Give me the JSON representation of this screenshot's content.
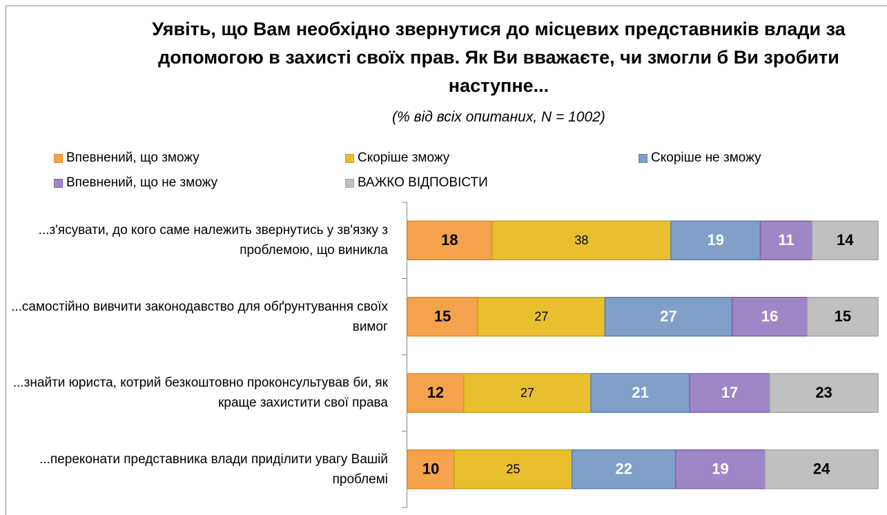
{
  "chart_data": {
    "type": "stacked_barh",
    "title": "Уявіть, що Вам необхідно звернутися до місцевих представників влади за допомогою в захисті своїх прав. Як Ви вважаєте, чи змогли б Ви зробити наступне...",
    "subtitle": "(% від всіх опитаних, N = 1002)",
    "categories": [
      "...з'ясувати, до кого саме належить звернутись у зв'язку з проблемою, що виникла",
      "...самостійно вивчити законодавство для обґрунтування своїх вимог",
      "...знайти юриста, котрий безкоштовно проконсультував би, як краще захистити свої права",
      "...переконати представника влади приділити увагу Вашій проблемі"
    ],
    "series": [
      {
        "name": "Впевнений, що зможу",
        "color": "#f4a24c",
        "border": "#e0882c",
        "label_color": "#000000",
        "label_bold": true,
        "values": [
          18,
          15,
          12,
          10
        ]
      },
      {
        "name": "Скоріше зможу",
        "color": "#e9bf30",
        "border": "#c9a017",
        "label_color": "#000000",
        "label_bold": false,
        "values": [
          38,
          27,
          27,
          25
        ]
      },
      {
        "name": "Скоріше не зможу",
        "color": "#80a0c9",
        "border": "#5a7fb0",
        "label_color": "#ffffff",
        "label_bold": true,
        "values": [
          19,
          27,
          21,
          22
        ]
      },
      {
        "name": "Впевнений, що не зможу",
        "color": "#9f87c7",
        "border": "#7d61ad",
        "label_color": "#ffffff",
        "label_bold": true,
        "values": [
          11,
          16,
          17,
          19
        ]
      },
      {
        "name": "ВАЖКО ВІДПОВІСТИ",
        "color": "#c0c0c0",
        "border": "#a6a6a6",
        "label_color": "#000000",
        "label_bold": true,
        "values": [
          14,
          15,
          23,
          24
        ]
      }
    ],
    "xlim": [
      0,
      100
    ],
    "legend": "top"
  }
}
